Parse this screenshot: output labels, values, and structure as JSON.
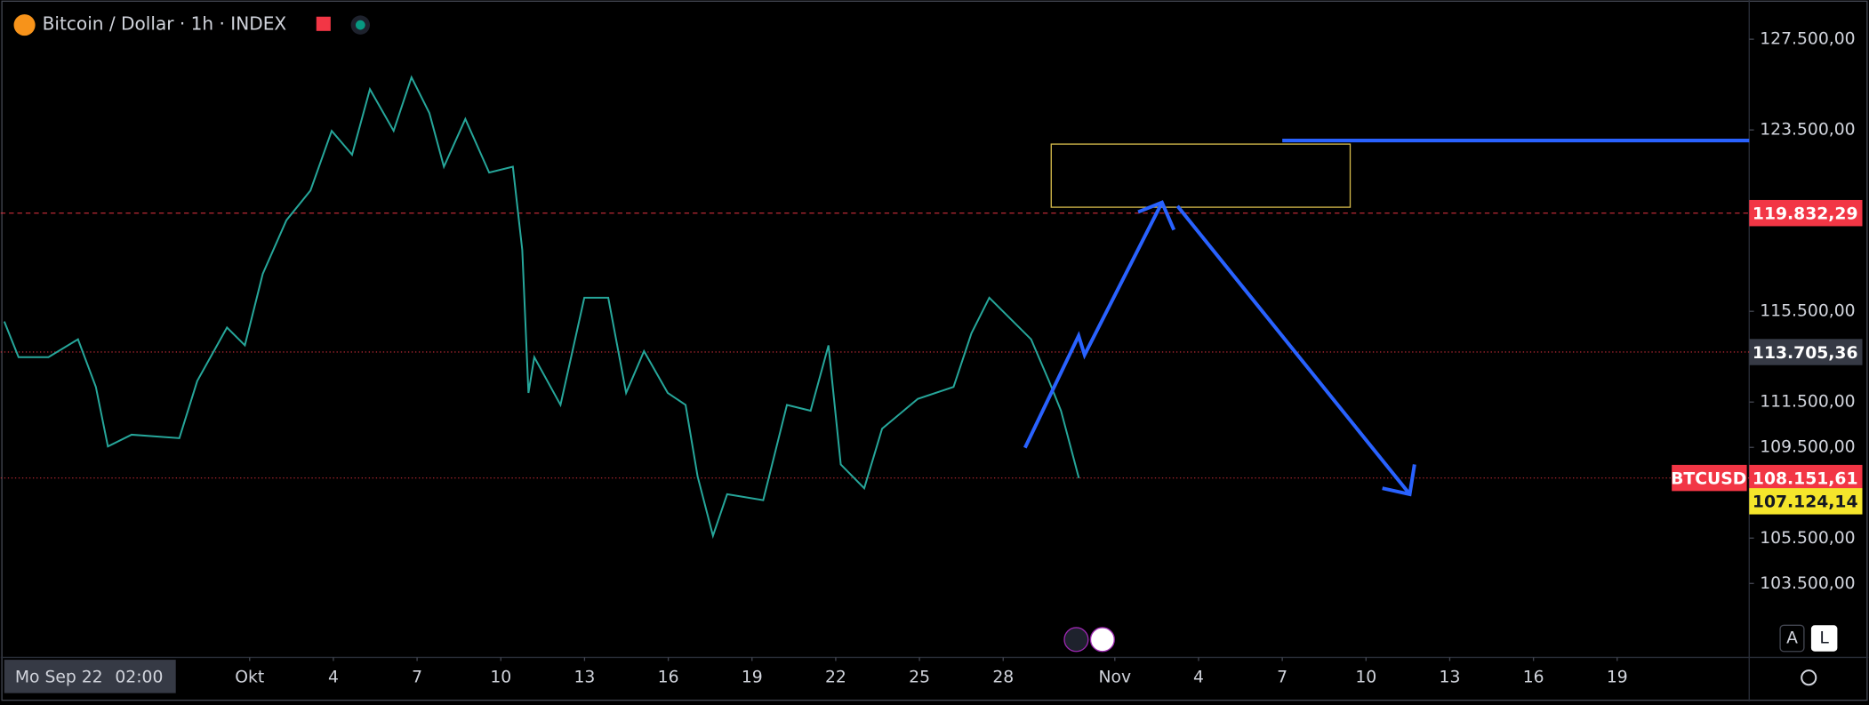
{
  "chart_data": {
    "type": "line",
    "title": "Bitcoin / Dollar · 1h · INDEX",
    "series": [
      {
        "name": "BTCUSD",
        "color": "#26a69a",
        "x": [
          -8.79,
          -8.28,
          -7.21,
          -6.15,
          -5.51,
          -5.08,
          -4.23,
          -2.52,
          -1.88,
          -0.81,
          -0.17,
          0.47,
          1.32,
          2.18,
          2.94,
          3.67,
          4.31,
          5.16,
          5.8,
          6.44,
          6.96,
          7.73,
          8.58,
          9.43,
          9.77,
          9.99,
          10.2,
          11.14,
          11.99,
          12.85,
          13.49,
          14.13,
          14.98,
          15.62,
          16.05,
          16.6,
          17.11,
          18.4,
          19.25,
          20.1,
          20.74,
          21.18,
          22.02,
          22.66,
          23.94,
          25.22,
          25.86,
          26.5,
          27.36,
          28.0,
          28.64,
          29.07,
          29.71
        ],
        "values": [
          115050,
          113480,
          113480,
          114265,
          112165,
          109540,
          110060,
          109906,
          112430,
          114790,
          114000,
          117150,
          119517,
          120830,
          123456,
          122406,
          125299,
          123456,
          125819,
          124244,
          121880,
          123981,
          121618,
          121880,
          118204,
          111902,
          113480,
          111376,
          116103,
          116103,
          111902,
          113740,
          111902,
          111376,
          108225,
          105600,
          107437,
          107175,
          111376,
          111114,
          114000,
          108750,
          107700,
          110326,
          111640,
          112165,
          114528,
          116103,
          115050,
          114265,
          112430,
          111114,
          108151.61
        ]
      }
    ],
    "xlim": [
      -8.92,
      53.73
    ],
    "xticks": [
      {
        "value": 0,
        "label": "Okt"
      },
      {
        "value": 3,
        "label": "4"
      },
      {
        "value": 6,
        "label": "7"
      },
      {
        "value": 9,
        "label": "10"
      },
      {
        "value": 12,
        "label": "13"
      },
      {
        "value": 15,
        "label": "16"
      },
      {
        "value": 18,
        "label": "19"
      },
      {
        "value": 21,
        "label": "22"
      },
      {
        "value": 24,
        "label": "25"
      },
      {
        "value": 27,
        "label": "28"
      },
      {
        "value": 31,
        "label": "Nov"
      },
      {
        "value": 34,
        "label": "4"
      },
      {
        "value": 37,
        "label": "7"
      },
      {
        "value": 40,
        "label": "10"
      },
      {
        "value": 43,
        "label": "13"
      },
      {
        "value": 46,
        "label": "16"
      },
      {
        "value": 49,
        "label": "19"
      }
    ],
    "ylim": [
      100240,
      129230
    ],
    "yticks": [
      {
        "value": 127500,
        "label": "127.500,00"
      },
      {
        "value": 123500,
        "label": "123.500,00"
      },
      {
        "value": 115500,
        "label": "115.500,00"
      },
      {
        "value": 111500,
        "label": "111.500,00"
      },
      {
        "value": 109500,
        "label": "109.500,00"
      },
      {
        "value": 105500,
        "label": "105.500,00"
      },
      {
        "value": 103500,
        "label": "103.500,00"
      }
    ],
    "price_lines": [
      {
        "value": 119832.29,
        "label": "119.832,29",
        "color": "#f23645",
        "line": "dashed"
      },
      {
        "value": 113705.36,
        "label": "113.705,36",
        "color": "#363a45",
        "line": "dotted"
      },
      {
        "value": 108151.61,
        "label": "108.151,61",
        "color": "#f23645",
        "line": "dotted",
        "name": "BTCUSD"
      },
      {
        "value": 107124.14,
        "label": "107.124,14",
        "color": "#f5e52b",
        "line": "none"
      }
    ],
    "cursor_label": [
      "Mo Sep 22",
      "02:00"
    ],
    "buttons": [
      "A",
      "L"
    ]
  }
}
